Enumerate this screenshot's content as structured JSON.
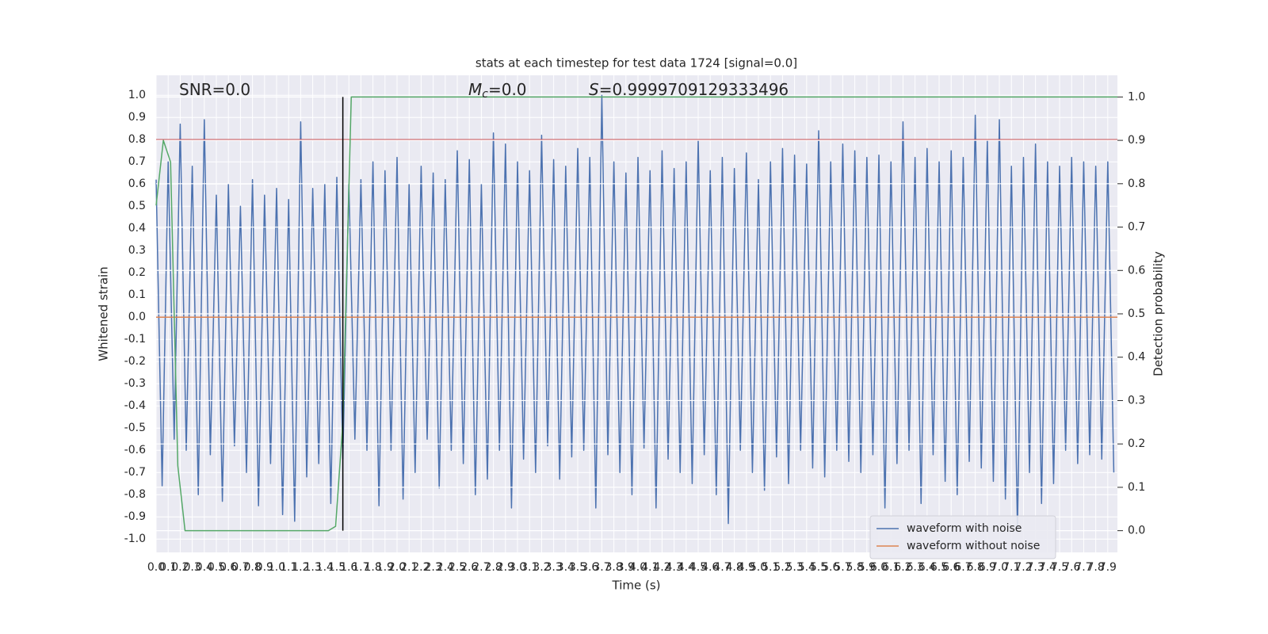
{
  "chart_data": {
    "type": "line",
    "title": "stats at each timestep for test data 1724 [signal=0.0]",
    "xlabel": "Time (s)",
    "ylabel": "Whitened strain",
    "y2label": "Detection probability",
    "grid": true,
    "legend_loc": "lower right",
    "background": "#eaeaf2",
    "xlim": [
      0,
      7.98
    ],
    "ylim": [
      -1.06,
      1.09
    ],
    "y2lim": [
      -0.05,
      1.05
    ],
    "xticks": [
      {
        "value": 0,
        "label": "0.0"
      },
      0.1,
      0.2,
      0.3,
      0.4,
      0.5,
      0.6,
      0.7,
      0.8,
      0.9,
      {
        "value": 1,
        "label": "1.0"
      },
      1.1,
      1.2,
      1.3,
      1.4,
      1.5,
      1.6,
      1.7,
      1.8,
      1.9,
      {
        "value": 2,
        "label": "2.0"
      },
      2.1,
      2.2,
      2.3,
      2.4,
      2.5,
      2.6,
      2.7,
      2.8,
      2.9,
      {
        "value": 3,
        "label": "3.0"
      },
      3.1,
      3.2,
      3.3,
      3.4,
      3.5,
      3.6,
      3.7,
      3.8,
      3.9,
      {
        "value": 4,
        "label": "4.0"
      },
      4.1,
      4.2,
      4.3,
      4.4,
      4.5,
      4.6,
      4.7,
      4.8,
      4.9,
      {
        "value": 5,
        "label": "5.0"
      },
      5.1,
      5.2,
      5.3,
      5.4,
      5.5,
      5.6,
      5.7,
      5.8,
      5.9,
      {
        "value": 6,
        "label": "6.0"
      },
      6.1,
      6.2,
      6.3,
      6.4,
      6.5,
      6.6,
      6.7,
      6.8,
      6.9,
      {
        "value": 7,
        "label": "7.0"
      },
      7.1,
      7.2,
      7.3,
      7.4,
      7.5,
      7.6,
      7.7,
      7.8,
      7.9
    ],
    "yticks": [
      {
        "value": -1,
        "label": "-1.0"
      },
      -0.9,
      -0.8,
      -0.7,
      -0.6,
      -0.5,
      -0.4,
      -0.3,
      -0.2,
      -0.1,
      {
        "value": 0,
        "label": "0.0"
      },
      0.1,
      0.2,
      0.3,
      0.4,
      0.5,
      0.6,
      0.7,
      0.8,
      0.9,
      {
        "value": 1,
        "label": "1.0"
      }
    ],
    "y2ticks": [
      {
        "value": 0,
        "label": "0.0"
      },
      0.1,
      0.2,
      0.3,
      0.4,
      0.5,
      0.6,
      0.7,
      0.8,
      0.9,
      {
        "value": 1,
        "label": "1.0"
      }
    ],
    "series": [
      {
        "name": "waveform with noise",
        "color": "#4c72b0",
        "x": [
          0,
          0.05,
          0.1,
          0.15,
          0.2,
          0.25,
          0.3,
          0.35,
          0.4,
          0.45,
          0.5,
          0.55,
          0.6,
          0.65,
          0.7,
          0.75,
          0.8,
          0.85,
          0.9,
          0.95,
          1,
          1.05,
          1.1,
          1.15,
          1.2,
          1.25,
          1.3,
          1.35,
          1.4,
          1.45,
          1.5,
          1.55,
          1.6,
          1.65,
          1.7,
          1.75,
          1.8,
          1.85,
          1.9,
          1.95,
          2,
          2.05,
          2.1,
          2.15,
          2.2,
          2.25,
          2.3,
          2.35,
          2.4,
          2.45,
          2.5,
          2.55,
          2.6,
          2.65,
          2.7,
          2.75,
          2.8,
          2.85,
          2.9,
          2.95,
          3,
          3.05,
          3.1,
          3.15,
          3.2,
          3.25,
          3.3,
          3.35,
          3.4,
          3.45,
          3.5,
          3.55,
          3.6,
          3.65,
          3.7,
          3.75,
          3.8,
          3.85,
          3.9,
          3.95,
          4,
          4.05,
          4.1,
          4.15,
          4.2,
          4.25,
          4.3,
          4.35,
          4.4,
          4.45,
          4.5,
          4.55,
          4.6,
          4.65,
          4.7,
          4.75,
          4.8,
          4.85,
          4.9,
          4.95,
          5,
          5.05,
          5.1,
          5.15,
          5.2,
          5.25,
          5.3,
          5.35,
          5.4,
          5.45,
          5.5,
          5.55,
          5.6,
          5.65,
          5.7,
          5.75,
          5.8,
          5.85,
          5.9,
          5.95,
          6,
          6.05,
          6.1,
          6.15,
          6.2,
          6.25,
          6.3,
          6.35,
          6.4,
          6.45,
          6.5,
          6.55,
          6.6,
          6.65,
          6.7,
          6.75,
          6.8,
          6.85,
          6.9,
          6.95,
          7,
          7.05,
          7.1,
          7.15,
          7.2,
          7.25,
          7.3,
          7.35,
          7.4,
          7.45,
          7.5,
          7.55,
          7.6,
          7.65,
          7.7,
          7.75,
          7.8,
          7.85,
          7.9,
          7.95
        ],
        "values": [
          0.62,
          -0.76,
          0.7,
          -0.55,
          0.87,
          -0.6,
          0.68,
          -0.8,
          0.89,
          -0.62,
          0.55,
          -0.83,
          0.6,
          -0.58,
          0.5,
          -0.7,
          0.62,
          -0.85,
          0.55,
          -0.66,
          0.58,
          -0.89,
          0.53,
          -0.92,
          0.88,
          -0.72,
          0.58,
          -0.66,
          0.6,
          -0.84,
          0.63,
          -0.64,
          0.6,
          -0.55,
          0.62,
          -0.6,
          0.7,
          -0.85,
          0.66,
          -0.6,
          0.72,
          -0.82,
          0.6,
          -0.7,
          0.68,
          -0.55,
          0.65,
          -0.77,
          0.62,
          -0.6,
          0.75,
          -0.66,
          0.71,
          -0.8,
          0.6,
          -0.73,
          0.83,
          -0.6,
          0.78,
          -0.86,
          0.7,
          -0.64,
          0.66,
          -0.7,
          0.82,
          -0.58,
          0.71,
          -0.73,
          0.68,
          -0.63,
          0.76,
          -0.6,
          0.72,
          -0.86,
          1.0,
          -0.62,
          0.7,
          -0.7,
          0.65,
          -0.8,
          0.72,
          -0.59,
          0.66,
          -0.86,
          0.75,
          -0.64,
          0.67,
          -0.7,
          0.7,
          -0.75,
          0.8,
          -0.62,
          0.66,
          -0.8,
          0.72,
          -0.93,
          0.67,
          -0.6,
          0.74,
          -0.7,
          0.62,
          -0.78,
          0.7,
          -0.63,
          0.76,
          -0.75,
          0.73,
          -0.6,
          0.69,
          -0.68,
          0.84,
          -0.72,
          0.7,
          -0.6,
          0.78,
          -0.65,
          0.75,
          -0.7,
          0.72,
          -0.62,
          0.73,
          -0.86,
          0.7,
          -0.66,
          0.88,
          -0.6,
          0.72,
          -0.84,
          0.76,
          -0.62,
          0.7,
          -0.74,
          0.75,
          -0.8,
          0.72,
          -0.65,
          0.91,
          -0.68,
          0.8,
          -0.74,
          0.89,
          -0.82,
          0.68,
          -0.96,
          0.72,
          -0.7,
          0.78,
          -0.84,
          0.7,
          -0.75,
          0.68,
          -0.6,
          0.72,
          -0.66,
          0.7,
          -0.62,
          0.68,
          -0.64,
          0.7,
          -0.7
        ]
      },
      {
        "name": "waveform without noise",
        "color": "#dd8452",
        "x": [
          0,
          7.98
        ],
        "values": [
          0,
          0
        ]
      },
      {
        "color": "#55a868",
        "axis": "y2",
        "x": [
          0,
          0.06,
          0.12,
          0.18,
          0.24,
          1.43,
          1.49,
          1.55,
          1.62,
          7.98
        ],
        "values": [
          0.75,
          0.9,
          0.85,
          0.15,
          0.0,
          0.0,
          0.01,
          0.25,
          1.0,
          1.0
        ]
      }
    ],
    "hlines": [
      {
        "y": 0.8,
        "color": "#c44e52"
      }
    ],
    "vlines": [
      {
        "x": 1.55,
        "ymin": 0,
        "ymax": 1,
        "axis": "y2",
        "color": "#000000"
      }
    ],
    "annotations": [
      {
        "text": "SNR=0.0"
      },
      {
        "symbol": "M",
        "subscript": "c",
        "text": "=0.0"
      },
      {
        "symbol": "S",
        "text": "=0.9999709129333496"
      }
    ]
  }
}
